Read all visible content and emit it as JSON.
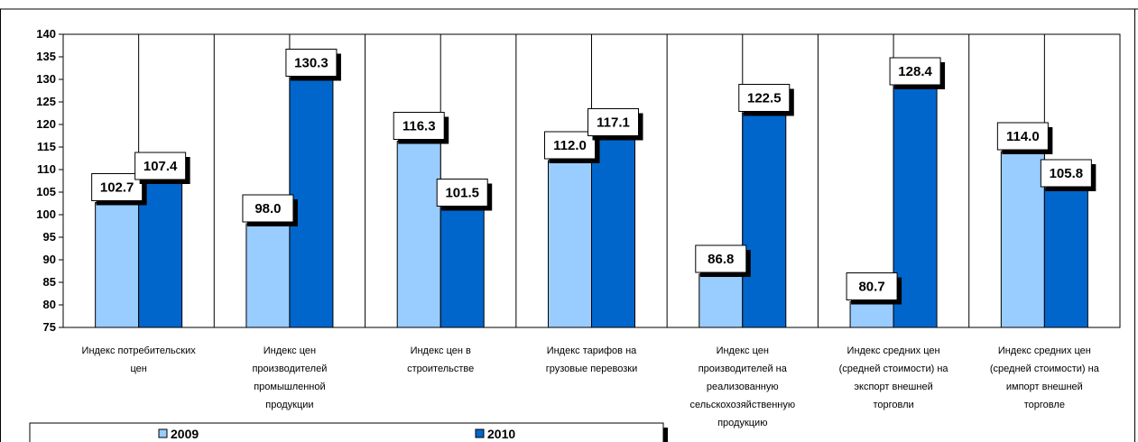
{
  "chart_data": {
    "type": "bar",
    "ylim": [
      75,
      140
    ],
    "y_ticks": [
      "75",
      "80",
      "85",
      "90",
      "95",
      "100",
      "105",
      "110",
      "115",
      "120",
      "125",
      "130",
      "135",
      "140"
    ],
    "grid": false,
    "legend_placement": "bottom-left",
    "categories": [
      [
        "Индекс потребительских",
        "цен"
      ],
      [
        "Индекс цен",
        "производителей",
        "промышленной",
        "продукции"
      ],
      [
        "Индекс цен в",
        "строительстве"
      ],
      [
        "Индекс тарифов на",
        "грузовые перевозки"
      ],
      [
        "Индекс цен",
        "производителей на",
        "реализованную",
        "сельскохозяйственную",
        "продукцию"
      ],
      [
        "Индекс средних цен",
        "(средней стоимости) на",
        "экспорт внешней",
        "торговли"
      ],
      [
        "Индекс средних цен",
        "(средней стоимости) на",
        "импорт внешней",
        "торговле"
      ]
    ],
    "series": [
      {
        "name": "2009",
        "color": "#99ccff",
        "values": [
          102.7,
          98.0,
          116.3,
          112.0,
          86.8,
          80.7,
          114.0
        ],
        "labels": [
          "102.7",
          "98.0",
          "116.3",
          "112.0",
          "86.8",
          "80.7",
          "114.0"
        ]
      },
      {
        "name": "2010",
        "color": "#0066cc",
        "values": [
          107.4,
          130.3,
          101.5,
          117.1,
          122.5,
          128.4,
          105.8
        ],
        "labels": [
          "107.4",
          "130.3",
          "101.5",
          "117.1",
          "122.5",
          "128.4",
          "105.8"
        ]
      }
    ]
  }
}
